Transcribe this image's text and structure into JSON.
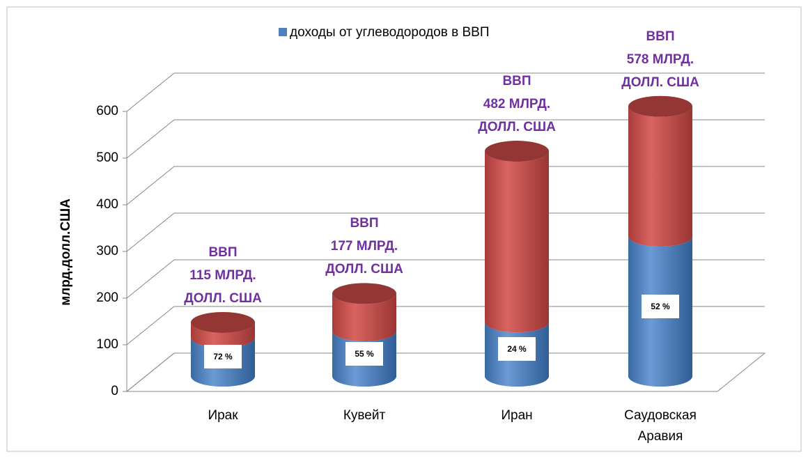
{
  "chart_data": {
    "type": "cylinder-stacked",
    "y_label": "млрд.долл.США",
    "categories": [
      "Ирак",
      "Кувейт",
      "Иран",
      "Саудовская Аравия"
    ],
    "series": [
      {
        "name": "доходы от углеводородов в ВВП",
        "color": "#4f81bd",
        "values": [
          83,
          97,
          116,
          300
        ]
      },
      {
        "color": "#c0504d",
        "values": [
          32,
          80,
          366,
          278
        ]
      }
    ],
    "shares": [
      72,
      55,
      24,
      52
    ],
    "share_labels": [
      "72 %",
      "55 %",
      "24 %",
      "52 %"
    ],
    "annotations": [
      [
        "ВВП",
        "115 МЛРД.",
        "ДОЛЛ. США"
      ],
      [
        "ВВП",
        "177 МЛРД.",
        "ДОЛЛ. США"
      ],
      [
        "ВВП",
        "482 МЛРД.",
        "ДОЛЛ. США"
      ],
      [
        "ВВП",
        "578 МЛРД.",
        "ДОЛЛ. США"
      ]
    ],
    "ylim": [
      0,
      600
    ],
    "yticks": [
      0,
      100,
      200,
      300,
      400,
      500,
      600
    ],
    "grid": true,
    "legend": "top"
  }
}
